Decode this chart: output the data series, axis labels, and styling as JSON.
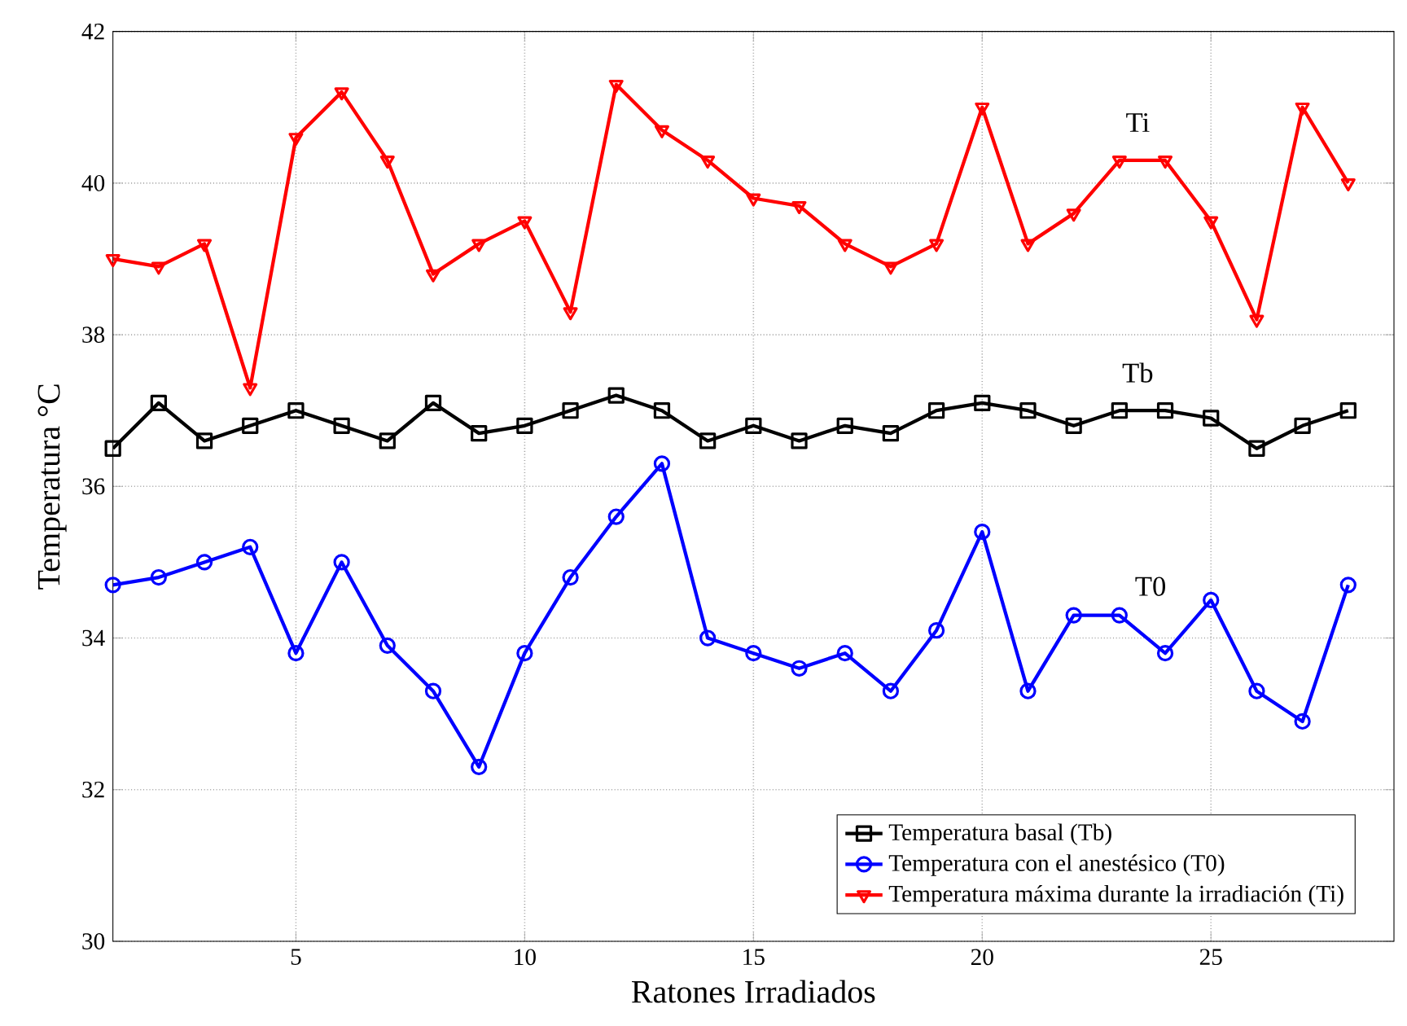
{
  "chart_data": {
    "type": "line",
    "xlabel": "Ratones Irradiados",
    "ylabel": "Temperatura °C",
    "x": [
      1,
      2,
      3,
      4,
      5,
      6,
      7,
      8,
      9,
      10,
      11,
      12,
      13,
      14,
      15,
      16,
      17,
      18,
      19,
      20,
      21,
      22,
      23,
      24,
      25,
      26,
      27,
      28
    ],
    "series": [
      {
        "name": "Temperatura basal (Tb)",
        "color": "#000000",
        "marker": "square",
        "values": [
          36.5,
          37.1,
          36.6,
          36.8,
          37.0,
          36.8,
          36.6,
          37.1,
          36.7,
          36.8,
          37.0,
          37.2,
          37.0,
          36.6,
          36.8,
          36.6,
          36.8,
          36.7,
          37.0,
          37.1,
          37.0,
          36.8,
          37.0,
          37.0,
          36.9,
          36.5,
          36.8,
          37.0
        ]
      },
      {
        "name": "Temperatura con el anestésico (T0)",
        "color": "#0000ff",
        "marker": "circle",
        "values": [
          34.7,
          34.8,
          35.0,
          35.2,
          33.8,
          35.0,
          33.9,
          33.3,
          32.3,
          33.8,
          34.8,
          35.6,
          36.3,
          34.0,
          33.8,
          33.6,
          33.8,
          33.3,
          34.1,
          35.4,
          33.3,
          34.3,
          34.3,
          33.8,
          34.5,
          33.3,
          32.9,
          34.7
        ]
      },
      {
        "name": "Temperatura máxima durante la irradiación (Ti)",
        "color": "#ff0000",
        "marker": "triangle",
        "values": [
          39.0,
          38.9,
          39.2,
          37.3,
          40.6,
          41.2,
          40.3,
          38.8,
          39.2,
          39.5,
          38.3,
          41.3,
          40.7,
          40.3,
          39.8,
          39.7,
          39.2,
          38.9,
          39.2,
          41.0,
          39.2,
          39.6,
          40.3,
          40.3,
          39.5,
          38.2,
          41.0,
          40.0
        ]
      }
    ],
    "annotations": [
      "Ti",
      "Tb",
      "T0"
    ],
    "xlim": [
      1,
      29
    ],
    "ylim": [
      30,
      42
    ],
    "xticks": [
      5,
      10,
      15,
      20,
      25
    ],
    "yticks": [
      30,
      32,
      34,
      36,
      38,
      40,
      42
    ],
    "grid": true,
    "legend": "bottom right",
    "line_style": "solid"
  }
}
